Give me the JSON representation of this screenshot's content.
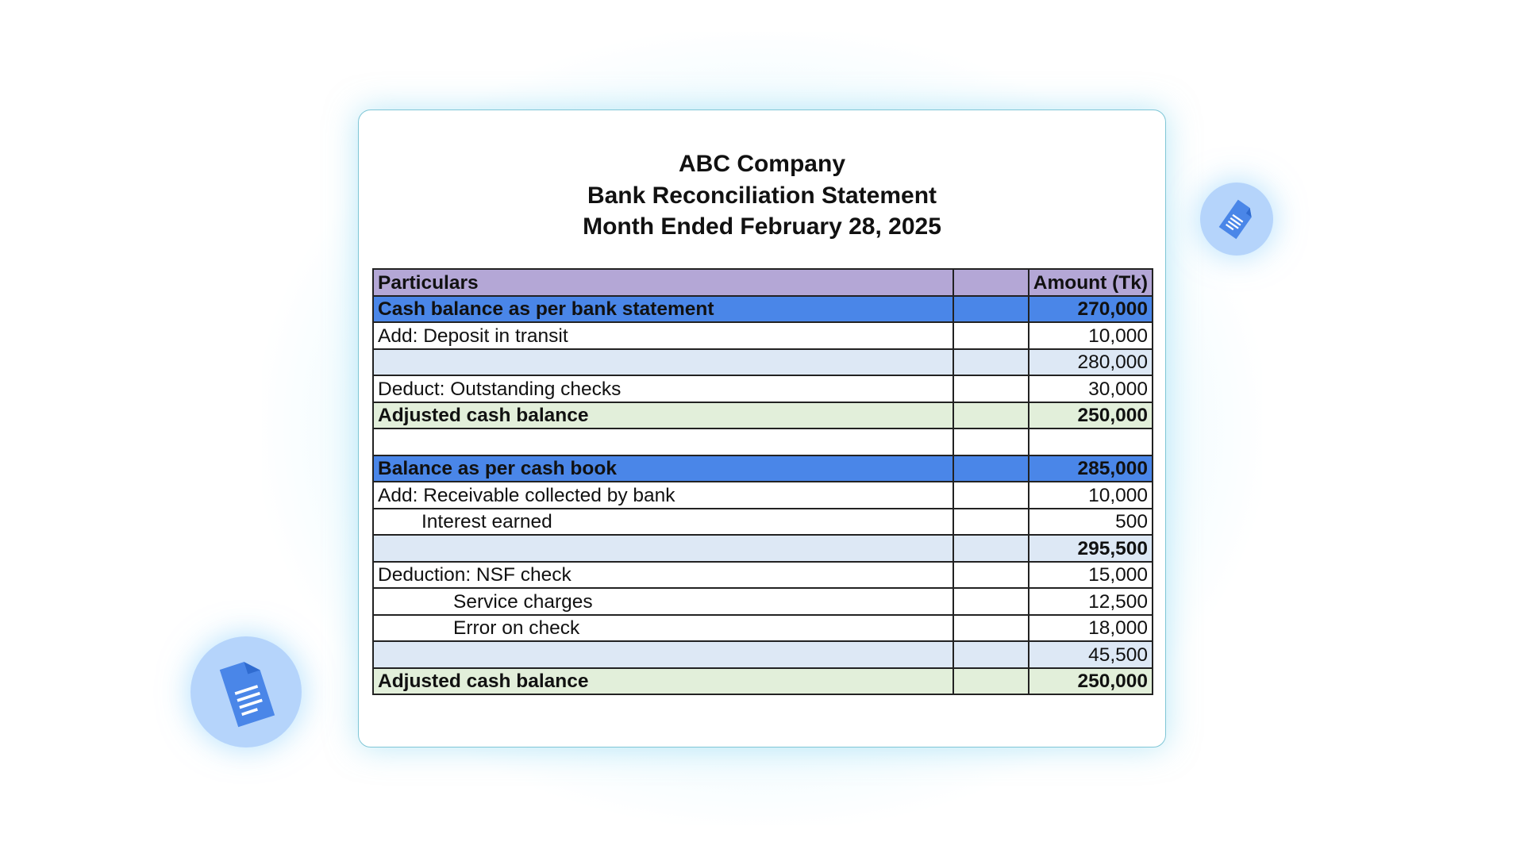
{
  "title": {
    "company": "ABC Company",
    "statement": "Bank Reconciliation Statement",
    "period": "Month Ended February 28, 2025"
  },
  "table": {
    "headers": [
      "Particulars",
      "",
      "Amount (Tk)"
    ],
    "rows": [
      {
        "label": "Cash balance as per bank statement",
        "amount": "270,000"
      },
      {
        "label": "Add: Deposit in transit",
        "amount": "10,000"
      },
      {
        "label": "",
        "amount": "280,000"
      },
      {
        "label": "Deduct: Outstanding checks",
        "amount": "30,000"
      },
      {
        "label": "Adjusted cash balance",
        "amount": "250,000"
      },
      {
        "label": "",
        "amount": ""
      },
      {
        "label": "Balance as per cash book",
        "amount": "285,000"
      },
      {
        "label": "Add: Receivable collected by bank",
        "amount": "10,000"
      },
      {
        "label": "Interest earned",
        "amount": "500"
      },
      {
        "label": "",
        "amount": "295,500"
      },
      {
        "label": "Deduction: NSF check",
        "amount": "15,000"
      },
      {
        "label": "Service charges",
        "amount": "12,500"
      },
      {
        "label": "Error on check",
        "amount": "18,000"
      },
      {
        "label": "",
        "amount": "45,500"
      },
      {
        "label": "Adjusted cash balance",
        "amount": "250,000"
      }
    ]
  },
  "icons": {
    "document": "google-docs-icon"
  },
  "colors": {
    "header": "#b4a7d6",
    "highlight": "#4a86e8",
    "subtotal": "#dde8f5",
    "total": "#e2efda",
    "icon": "#4a86e8"
  }
}
